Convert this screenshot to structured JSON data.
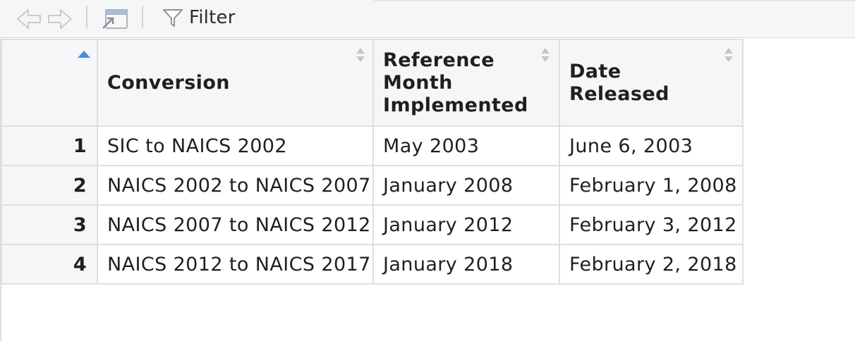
{
  "toolbar": {
    "back_icon": "back-arrow-icon",
    "forward_icon": "forward-arrow-icon",
    "popout_icon": "popout-window-icon",
    "filter_icon": "funnel-icon",
    "filter_label": "Filter"
  },
  "table": {
    "columns": [
      {
        "label": "",
        "sort": "ascending"
      },
      {
        "label": "Conversion",
        "sort": "none"
      },
      {
        "label": "Reference Month Implemented",
        "sort": "none"
      },
      {
        "label": "Date Released",
        "sort": "none"
      }
    ],
    "rows": [
      {
        "index": "1",
        "conversion": "SIC to NAICS 2002",
        "reference_month": "May 2003",
        "date_released": "June 6, 2003"
      },
      {
        "index": "2",
        "conversion": "NAICS 2002 to NAICS 2007",
        "reference_month": "January 2008",
        "date_released": "February 1, 2008"
      },
      {
        "index": "3",
        "conversion": "NAICS 2007 to NAICS 2012",
        "reference_month": "January 2012",
        "date_released": "February 3, 2012"
      },
      {
        "index": "4",
        "conversion": "NAICS 2012 to NAICS 2017",
        "reference_month": "January 2018",
        "date_released": "February 2, 2018"
      }
    ]
  },
  "colors": {
    "sort_active": "#3d8fe0",
    "sort_inactive": "#c4c6c9",
    "header_bg": "#f5f6f7",
    "border": "#dde0e3"
  }
}
